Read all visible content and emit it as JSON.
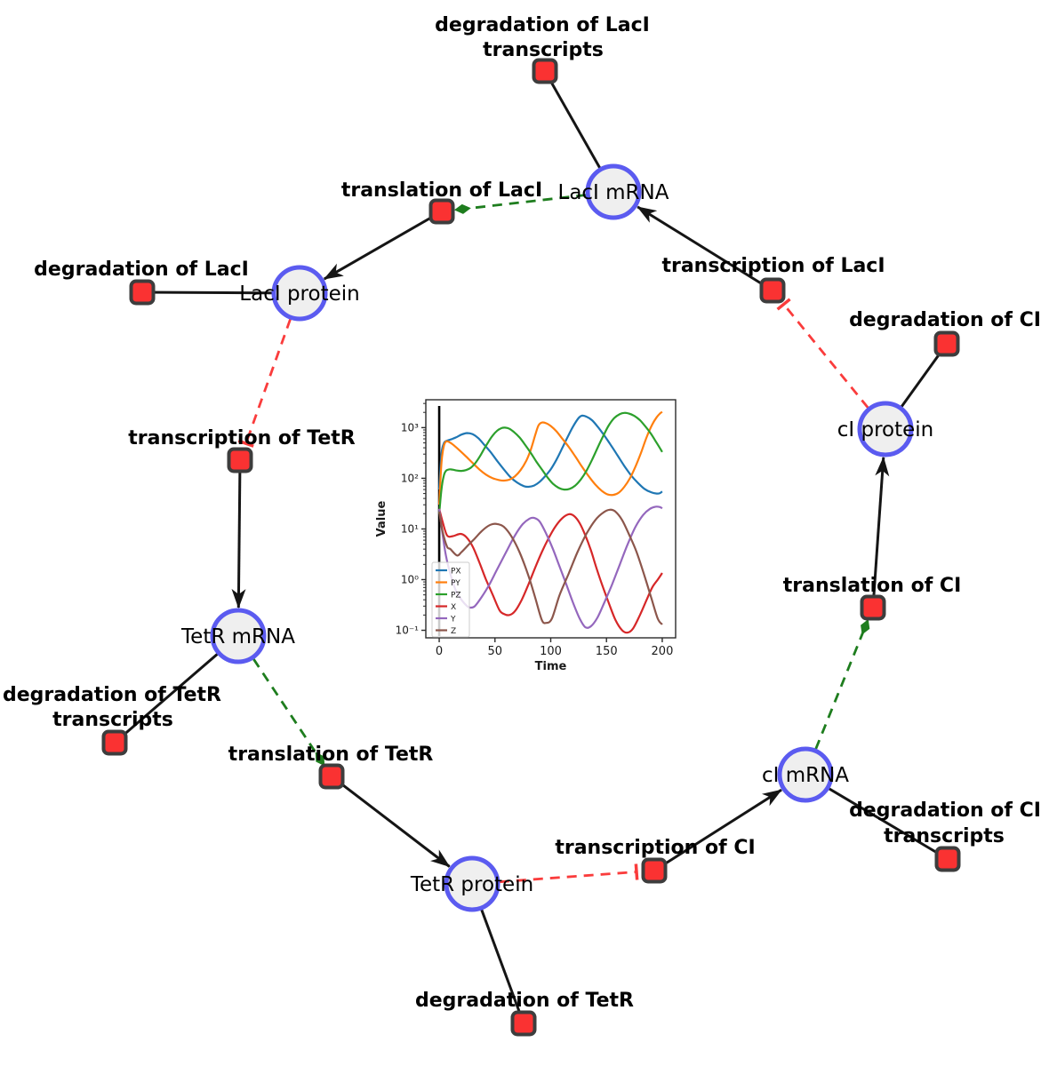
{
  "colors": {
    "background": "#ffffff",
    "species_fill": "#efefef",
    "species_stroke": "#5b5bf0",
    "reaction_fill": "#fa3232",
    "reaction_stroke": "#3d3d3d",
    "edge": "#151515",
    "modifier_edge": "#1e7d1e",
    "inhibition_edge": "#fa3c3c"
  },
  "species": {
    "laci_mrna": {
      "label": "LacI mRNA"
    },
    "laci_protein": {
      "label": "LacI protein"
    },
    "ci_protein": {
      "label": "cI protein"
    },
    "tetr_mrna": {
      "label": "TetR mRNA"
    },
    "tetr_protein": {
      "label": "TetR protein"
    },
    "ci_mrna": {
      "label": "cI mRNA"
    }
  },
  "reactions": {
    "deg_laci_transcripts": {
      "lines": [
        "degradation of LacI",
        "transcripts"
      ]
    },
    "translation_laci": {
      "lines": [
        "translation of LacI"
      ]
    },
    "deg_laci": {
      "lines": [
        "degradation of LacI"
      ]
    },
    "transcription_laci": {
      "lines": [
        "transcription of LacI"
      ]
    },
    "deg_ci": {
      "lines": [
        "degradation of CI"
      ]
    },
    "transcription_tetr": {
      "lines": [
        "transcription of TetR"
      ]
    },
    "deg_tetr_transcripts": {
      "lines": [
        "degradation of TetR",
        "transcripts"
      ]
    },
    "translation_tetr": {
      "lines": [
        "translation of TetR"
      ]
    },
    "deg_tetr": {
      "lines": [
        "degradation of TetR"
      ]
    },
    "transcription_ci": {
      "lines": [
        "transcription of CI"
      ]
    },
    "deg_ci_transcripts": {
      "lines": [
        "degradation of CI",
        "transcripts"
      ]
    },
    "translation_ci": {
      "lines": [
        "translation of CI"
      ]
    }
  },
  "chart_data": {
    "type": "line",
    "title": "",
    "xlabel": "Time",
    "ylabel": "Value",
    "y_scale": "log",
    "grid": false,
    "legend_position": "lower left",
    "xlim": [
      -12,
      212
    ],
    "ylim_log": [
      0.071,
      3550
    ],
    "x_ticks": [
      0,
      50,
      100,
      150,
      200
    ],
    "y_tick_values": [
      0.1,
      1,
      10,
      100,
      1000
    ],
    "y_tick_labels": [
      "10⁻¹",
      "10⁰",
      "10¹",
      "10²",
      "10³"
    ],
    "vline": {
      "x": 0,
      "y_from": 0.077,
      "y_to": 2670,
      "color": "#000000"
    },
    "series": [
      {
        "name": "PX",
        "color": "#1f77b4",
        "points": [
          [
            0,
            60
          ],
          [
            2,
            300
          ],
          [
            4,
            480
          ],
          [
            6,
            540
          ],
          [
            10,
            580
          ],
          [
            15,
            640
          ],
          [
            20,
            730
          ],
          [
            25,
            780
          ],
          [
            30,
            740
          ],
          [
            35,
            620
          ],
          [
            40,
            470
          ],
          [
            46,
            330
          ],
          [
            52,
            220
          ],
          [
            58,
            150
          ],
          [
            64,
            105
          ],
          [
            70,
            82
          ],
          [
            76,
            70
          ],
          [
            80,
            68
          ],
          [
            85,
            72
          ],
          [
            90,
            85
          ],
          [
            95,
            110
          ],
          [
            100,
            150
          ],
          [
            105,
            230
          ],
          [
            110,
            380
          ],
          [
            115,
            640
          ],
          [
            120,
            1050
          ],
          [
            125,
            1550
          ],
          [
            128,
            1720
          ],
          [
            132,
            1650
          ],
          [
            137,
            1400
          ],
          [
            142,
            1050
          ],
          [
            148,
            700
          ],
          [
            154,
            450
          ],
          [
            160,
            280
          ],
          [
            166,
            175
          ],
          [
            172,
            115
          ],
          [
            178,
            82
          ],
          [
            184,
            62
          ],
          [
            190,
            53
          ],
          [
            195,
            50
          ],
          [
            198,
            51
          ],
          [
            200,
            55
          ]
        ]
      },
      {
        "name": "PY",
        "color": "#ff7f0e",
        "points": [
          [
            0,
            30
          ],
          [
            2,
            200
          ],
          [
            4,
            420
          ],
          [
            6,
            530
          ],
          [
            9,
            520
          ],
          [
            13,
            450
          ],
          [
            18,
            360
          ],
          [
            24,
            270
          ],
          [
            30,
            200
          ],
          [
            36,
            150
          ],
          [
            42,
            118
          ],
          [
            48,
            100
          ],
          [
            54,
            92
          ],
          [
            58,
            90
          ],
          [
            63,
            94
          ],
          [
            68,
            110
          ],
          [
            73,
            145
          ],
          [
            78,
            220
          ],
          [
            82,
            360
          ],
          [
            86,
            700
          ],
          [
            89,
            1100
          ],
          [
            92,
            1260
          ],
          [
            96,
            1220
          ],
          [
            100,
            1080
          ],
          [
            105,
            850
          ],
          [
            110,
            620
          ],
          [
            116,
            420
          ],
          [
            122,
            270
          ],
          [
            128,
            170
          ],
          [
            134,
            110
          ],
          [
            140,
            75
          ],
          [
            146,
            56
          ],
          [
            151,
            48
          ],
          [
            156,
            47
          ],
          [
            161,
            52
          ],
          [
            166,
            68
          ],
          [
            171,
            100
          ],
          [
            176,
            170
          ],
          [
            181,
            320
          ],
          [
            186,
            650
          ],
          [
            191,
            1150
          ],
          [
            195,
            1600
          ],
          [
            198,
            1900
          ],
          [
            200,
            2050
          ]
        ]
      },
      {
        "name": "PZ",
        "color": "#2ca02c",
        "points": [
          [
            0,
            20
          ],
          [
            2,
            60
          ],
          [
            4,
            110
          ],
          [
            6,
            140
          ],
          [
            9,
            150
          ],
          [
            12,
            148
          ],
          [
            16,
            142
          ],
          [
            20,
            140
          ],
          [
            24,
            145
          ],
          [
            28,
            160
          ],
          [
            32,
            195
          ],
          [
            36,
            260
          ],
          [
            40,
            370
          ],
          [
            44,
            520
          ],
          [
            48,
            700
          ],
          [
            52,
            870
          ],
          [
            56,
            980
          ],
          [
            59,
            1000
          ],
          [
            63,
            950
          ],
          [
            67,
            820
          ],
          [
            72,
            640
          ],
          [
            77,
            460
          ],
          [
            82,
            320
          ],
          [
            87,
            215
          ],
          [
            92,
            150
          ],
          [
            97,
            105
          ],
          [
            102,
            78
          ],
          [
            107,
            65
          ],
          [
            112,
            60
          ],
          [
            117,
            62
          ],
          [
            122,
            72
          ],
          [
            127,
            95
          ],
          [
            132,
            140
          ],
          [
            137,
            230
          ],
          [
            142,
            400
          ],
          [
            147,
            680
          ],
          [
            152,
            1100
          ],
          [
            157,
            1550
          ],
          [
            162,
            1850
          ],
          [
            166,
            1950
          ],
          [
            170,
            1900
          ],
          [
            175,
            1700
          ],
          [
            180,
            1400
          ],
          [
            185,
            1050
          ],
          [
            190,
            750
          ],
          [
            195,
            500
          ],
          [
            200,
            330
          ]
        ]
      },
      {
        "name": "X",
        "color": "#d62728",
        "points": [
          [
            0,
            25
          ],
          [
            3,
            14
          ],
          [
            7,
            7.5
          ],
          [
            12,
            7.2
          ],
          [
            19,
            8
          ],
          [
            24,
            7
          ],
          [
            30,
            4.5
          ],
          [
            36,
            2.2
          ],
          [
            42,
            1
          ],
          [
            48,
            0.5
          ],
          [
            54,
            0.25
          ],
          [
            58,
            0.21
          ],
          [
            63,
            0.2
          ],
          [
            68,
            0.24
          ],
          [
            74,
            0.4
          ],
          [
            80,
            0.8
          ],
          [
            86,
            1.7
          ],
          [
            92,
            3.5
          ],
          [
            98,
            6.5
          ],
          [
            104,
            11
          ],
          [
            110,
            16
          ],
          [
            116,
            19.5
          ],
          [
            121,
            18
          ],
          [
            126,
            13
          ],
          [
            131,
            7.5
          ],
          [
            136,
            3.8
          ],
          [
            141,
            1.7
          ],
          [
            146,
            0.8
          ],
          [
            152,
            0.35
          ],
          [
            158,
            0.16
          ],
          [
            164,
            0.1
          ],
          [
            169,
            0.09
          ],
          [
            174,
            0.11
          ],
          [
            180,
            0.2
          ],
          [
            186,
            0.4
          ],
          [
            191,
            0.7
          ],
          [
            196,
            1
          ],
          [
            200,
            1.35
          ]
        ]
      },
      {
        "name": "Y",
        "color": "#9467bd",
        "points": [
          [
            0,
            25
          ],
          [
            3,
            8
          ],
          [
            6,
            3
          ],
          [
            10,
            1.3
          ],
          [
            15,
            0.6
          ],
          [
            20,
            0.4
          ],
          [
            25,
            0.3
          ],
          [
            28,
            0.28
          ],
          [
            32,
            0.3
          ],
          [
            38,
            0.45
          ],
          [
            45,
            0.8
          ],
          [
            52,
            1.6
          ],
          [
            60,
            3.5
          ],
          [
            68,
            7.5
          ],
          [
            75,
            12.5
          ],
          [
            81,
            16
          ],
          [
            85,
            16.5
          ],
          [
            90,
            14
          ],
          [
            96,
            8
          ],
          [
            102,
            4
          ],
          [
            108,
            1.8
          ],
          [
            114,
            0.8
          ],
          [
            120,
            0.35
          ],
          [
            126,
            0.17
          ],
          [
            131,
            0.115
          ],
          [
            136,
            0.12
          ],
          [
            142,
            0.18
          ],
          [
            148,
            0.35
          ],
          [
            155,
            0.8
          ],
          [
            162,
            2
          ],
          [
            169,
            5
          ],
          [
            176,
            11
          ],
          [
            183,
            19
          ],
          [
            189,
            25
          ],
          [
            194,
            27.5
          ],
          [
            198,
            27
          ],
          [
            200,
            25.5
          ]
        ]
      },
      {
        "name": "Z",
        "color": "#8c564b",
        "points": [
          [
            0,
            22
          ],
          [
            3,
            9
          ],
          [
            7,
            4.5
          ],
          [
            10,
            4
          ],
          [
            16,
            3
          ],
          [
            20,
            3.5
          ],
          [
            26,
            4.8
          ],
          [
            32,
            6.5
          ],
          [
            38,
            9
          ],
          [
            44,
            11.5
          ],
          [
            48,
            12.5
          ],
          [
            52,
            12.5
          ],
          [
            58,
            11
          ],
          [
            65,
            7
          ],
          [
            72,
            3.5
          ],
          [
            80,
            1.2
          ],
          [
            86,
            0.45
          ],
          [
            92,
            0.16
          ],
          [
            96,
            0.14
          ],
          [
            101,
            0.17
          ],
          [
            108,
            0.5
          ],
          [
            116,
            1.3
          ],
          [
            124,
            3.5
          ],
          [
            132,
            8
          ],
          [
            140,
            15
          ],
          [
            147,
            21
          ],
          [
            153,
            24
          ],
          [
            158,
            22
          ],
          [
            164,
            15
          ],
          [
            170,
            8
          ],
          [
            177,
            3.5
          ],
          [
            184,
            1.2
          ],
          [
            190,
            0.45
          ],
          [
            196,
            0.17
          ],
          [
            200,
            0.13
          ]
        ]
      }
    ]
  }
}
